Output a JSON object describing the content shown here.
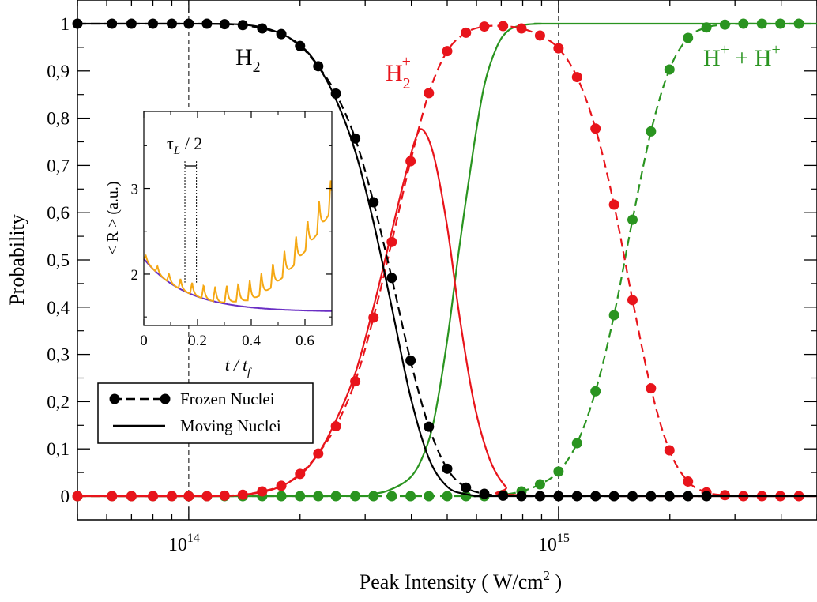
{
  "chart_data": [
    {
      "type": "line",
      "xscale": "log",
      "xlim": [
        50000000000000,
        5000000000000000
      ],
      "ylim": [
        0,
        1
      ],
      "xlabel": "Peak Intensity ( W/cm",
      "xlabel_sup": "2",
      "xlabel_end": " )",
      "ylabel": "Probability",
      "xticks_major": [
        {
          "value": 100000000000000,
          "base": "10",
          "exp": "14"
        },
        {
          "value": 1000000000000000,
          "base": "10",
          "exp": "15"
        }
      ],
      "yticks": [
        {
          "value": 0,
          "label": "0"
        },
        {
          "value": 0.1,
          "label": "0,1"
        },
        {
          "value": 0.2,
          "label": "0,2"
        },
        {
          "value": 0.3,
          "label": "0,3"
        },
        {
          "value": 0.4,
          "label": "0,4"
        },
        {
          "value": 0.5,
          "label": "0,5"
        },
        {
          "value": 0.6,
          "label": "0,6"
        },
        {
          "value": 0.7,
          "label": "0,7"
        },
        {
          "value": 0.8,
          "label": "0,8"
        },
        {
          "value": 0.9,
          "label": "0,9"
        },
        {
          "value": 1,
          "label": "1"
        }
      ],
      "vlines": [
        100000000000000,
        1000000000000000
      ],
      "annotations": [
        {
          "id": "h2",
          "text": "H",
          "sub": "2",
          "color": "#000000"
        },
        {
          "id": "h2plus",
          "text": "H",
          "sub": "2",
          "sup": "+",
          "color": "#e8141b"
        },
        {
          "id": "hh",
          "text": "H",
          "sup": "+",
          "mid": " + H",
          "sup2": "+",
          "color": "#2a9420"
        }
      ],
      "legend": {
        "position": "lower-left",
        "entries": [
          {
            "label": "Frozen Nuclei",
            "style": "dashed-markers"
          },
          {
            "label": "Moving Nuclei",
            "style": "solid"
          }
        ]
      },
      "series": [
        {
          "color": "#000000",
          "style": "frozen",
          "x": [
            50000000000000,
            62000000000000,
            70000000000000,
            80000000000000,
            90000000000000,
            100000000000000,
            112000000000000,
            125000000000000,
            140000000000000,
            158000000000000,
            178000000000000,
            200000000000000,
            224000000000000,
            250000000000000,
            282000000000000,
            316000000000000,
            354000000000000,
            398000000000000,
            446000000000000,
            500000000000000,
            562000000000000,
            630000000000000,
            708000000000000,
            794000000000000,
            891000000000000,
            1000000000000000,
            1122000000000000,
            1259000000000000,
            1413000000000000,
            1585000000000000,
            1778000000000000,
            1995000000000000,
            2239000000000000,
            2512000000000000
          ],
          "y": [
            1,
            1,
            1,
            1,
            1,
            1,
            1,
            0.999,
            0.997,
            0.99,
            0.978,
            0.953,
            0.91,
            0.852,
            0.757,
            0.622,
            0.462,
            0.287,
            0.147,
            0.058,
            0.018,
            0.005,
            0.001,
            0,
            0,
            0,
            0,
            0,
            0,
            0,
            0,
            0,
            0,
            0
          ]
        },
        {
          "color": "#000000",
          "style": "moving",
          "x": [
            50000000000000,
            100000000000000,
            140000000000000,
            170000000000000,
            200000000000000,
            224000000000000,
            250000000000000,
            282000000000000,
            316000000000000,
            354000000000000,
            398000000000000,
            446000000000000,
            500000000000000,
            562000000000000,
            630000000000000,
            708000000000000,
            5000000000000000
          ],
          "y": [
            1,
            1,
            0.998,
            0.985,
            0.955,
            0.91,
            0.84,
            0.73,
            0.58,
            0.4,
            0.21,
            0.08,
            0.02,
            0.004,
            0,
            0,
            0
          ]
        },
        {
          "color": "#e8141b",
          "style": "frozen",
          "x": [
            50000000000000,
            62000000000000,
            70000000000000,
            80000000000000,
            90000000000000,
            100000000000000,
            112000000000000,
            125000000000000,
            140000000000000,
            158000000000000,
            178000000000000,
            200000000000000,
            224000000000000,
            250000000000000,
            282000000000000,
            316000000000000,
            354000000000000,
            398000000000000,
            446000000000000,
            500000000000000,
            562000000000000,
            630000000000000,
            708000000000000,
            794000000000000,
            891000000000000,
            1000000000000000,
            1122000000000000,
            1259000000000000,
            1413000000000000,
            1585000000000000,
            1778000000000000,
            1995000000000000,
            2239000000000000,
            2512000000000000,
            2818000000000000,
            3162000000000000,
            3548000000000000,
            3981000000000000,
            4467000000000000,
            5000000000000000
          ],
          "y": [
            0,
            0,
            0,
            0,
            0,
            0,
            0,
            0.001,
            0.003,
            0.01,
            0.022,
            0.047,
            0.09,
            0.148,
            0.243,
            0.378,
            0.538,
            0.709,
            0.853,
            0.942,
            0.981,
            0.994,
            0.995,
            0.99,
            0.975,
            0.948,
            0.887,
            0.778,
            0.617,
            0.415,
            0.228,
            0.097,
            0.031,
            0.008,
            0.002,
            0,
            0,
            0,
            0,
            0
          ]
        },
        {
          "color": "#e8141b",
          "style": "moving",
          "x": [
            50000000000000,
            112000000000000,
            140000000000000,
            170000000000000,
            200000000000000,
            224000000000000,
            250000000000000,
            282000000000000,
            316000000000000,
            354000000000000,
            380000000000000,
            410000000000000,
            430000000000000,
            460000000000000,
            500000000000000,
            540000000000000,
            590000000000000,
            650000000000000,
            720000000000000,
            800000000000000,
            5000000000000000
          ],
          "y": [
            0,
            0,
            0.003,
            0.015,
            0.045,
            0.09,
            0.16,
            0.26,
            0.4,
            0.56,
            0.66,
            0.755,
            0.775,
            0.72,
            0.57,
            0.38,
            0.2,
            0.08,
            0.02,
            0.002,
            0
          ]
        },
        {
          "color": "#2a9420",
          "style": "frozen",
          "x": [
            50000000000000,
            62000000000000,
            70000000000000,
            80000000000000,
            90000000000000,
            100000000000000,
            112000000000000,
            125000000000000,
            140000000000000,
            158000000000000,
            178000000000000,
            200000000000000,
            224000000000000,
            250000000000000,
            282000000000000,
            316000000000000,
            354000000000000,
            398000000000000,
            446000000000000,
            500000000000000,
            562000000000000,
            630000000000000,
            708000000000000,
            794000000000000,
            891000000000000,
            1000000000000000,
            1122000000000000,
            1259000000000000,
            1413000000000000,
            1585000000000000,
            1778000000000000,
            1995000000000000,
            2239000000000000,
            2512000000000000,
            2818000000000000,
            3162000000000000,
            3548000000000000,
            3981000000000000,
            4467000000000000,
            5000000000000000
          ],
          "y": [
            0,
            0,
            0,
            0,
            0,
            0,
            0,
            0,
            0,
            0,
            0,
            0,
            0,
            0,
            0,
            0,
            0,
            0,
            0,
            0,
            0,
            0,
            0.003,
            0.01,
            0.025,
            0.052,
            0.112,
            0.222,
            0.383,
            0.585,
            0.772,
            0.903,
            0.97,
            0.992,
            0.998,
            1,
            1,
            1,
            1,
            1
          ]
        },
        {
          "color": "#2a9420",
          "style": "moving",
          "x": [
            50000000000000,
            250000000000000,
            316000000000000,
            354000000000000,
            398000000000000,
            430000000000000,
            460000000000000,
            500000000000000,
            540000000000000,
            590000000000000,
            630000000000000,
            680000000000000,
            730000000000000,
            800000000000000,
            900000000000000,
            1000000000000000,
            5000000000000000
          ],
          "y": [
            0,
            0,
            0.005,
            0.015,
            0.04,
            0.085,
            0.16,
            0.33,
            0.53,
            0.74,
            0.87,
            0.95,
            0.985,
            0.997,
            1,
            1,
            1
          ]
        }
      ]
    },
    {
      "type": "line",
      "xlim": [
        0,
        0.7
      ],
      "ylim": [
        1.4,
        3.9
      ],
      "xlabel": "t / t",
      "xlabel_sub": "f",
      "ylabel": "< R > (a.u.)",
      "xticks": [
        {
          "value": 0,
          "label": "0"
        },
        {
          "value": 0.2,
          "label": "0.2"
        },
        {
          "value": 0.4,
          "label": "0.4"
        },
        {
          "value": 0.6,
          "label": "0.6"
        }
      ],
      "yticks": [
        {
          "value": 2,
          "label": "2"
        },
        {
          "value": 3,
          "label": "3"
        }
      ],
      "annotation": {
        "text": "τ",
        "sub": "L",
        "rest": " / 2"
      },
      "period": 0.043,
      "tau_marks": [
        0.153,
        0.196
      ],
      "series": [
        {
          "color": "#6a2fc4",
          "baseline_only": true
        },
        {
          "color": "#f5a814",
          "baseline_only": false
        }
      ]
    }
  ]
}
